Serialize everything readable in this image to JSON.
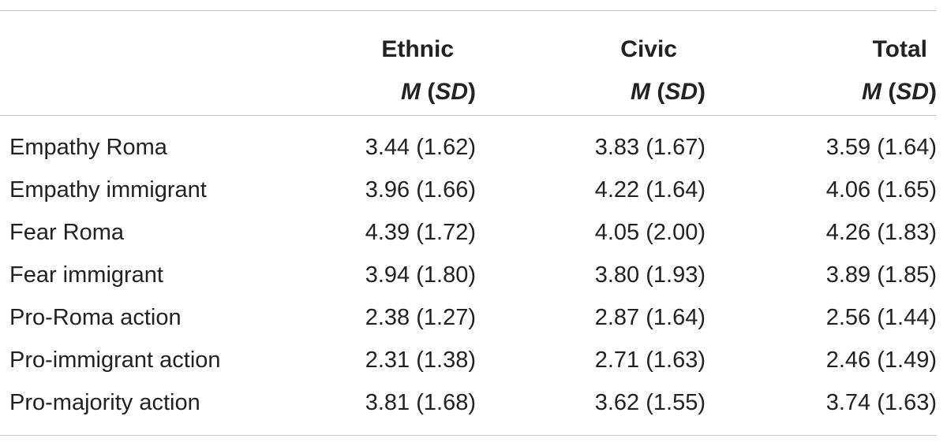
{
  "table": {
    "columns": [
      {
        "name": "Ethnic",
        "stat_m": "M",
        "stat_sd": "SD"
      },
      {
        "name": "Civic",
        "stat_m": "M",
        "stat_sd": "SD"
      },
      {
        "name": "Total",
        "stat_m": "M",
        "stat_sd": "SD"
      }
    ],
    "rows": [
      {
        "label": "Empathy Roma",
        "values": [
          "3.44 (1.62)",
          "3.83 (1.67)",
          "3.59 (1.64)"
        ]
      },
      {
        "label": "Empathy immigrant",
        "values": [
          "3.96 (1.66)",
          "4.22 (1.64)",
          "4.06 (1.65)"
        ]
      },
      {
        "label": "Fear Roma",
        "values": [
          "4.39 (1.72)",
          "4.05 (2.00)",
          "4.26 (1.83)"
        ]
      },
      {
        "label": "Fear immigrant",
        "values": [
          "3.94 (1.80)",
          "3.80 (1.93)",
          "3.89 (1.85)"
        ]
      },
      {
        "label": "Pro-Roma action",
        "values": [
          "2.38 (1.27)",
          "2.87 (1.64)",
          "2.56 (1.44)"
        ]
      },
      {
        "label": "Pro-immigrant action",
        "values": [
          "2.31 (1.38)",
          "2.71 (1.63)",
          "2.46 (1.49)"
        ]
      },
      {
        "label": "Pro-majority action",
        "values": [
          "3.81 (1.68)",
          "3.62 (1.55)",
          "3.74 (1.63)"
        ]
      }
    ]
  }
}
